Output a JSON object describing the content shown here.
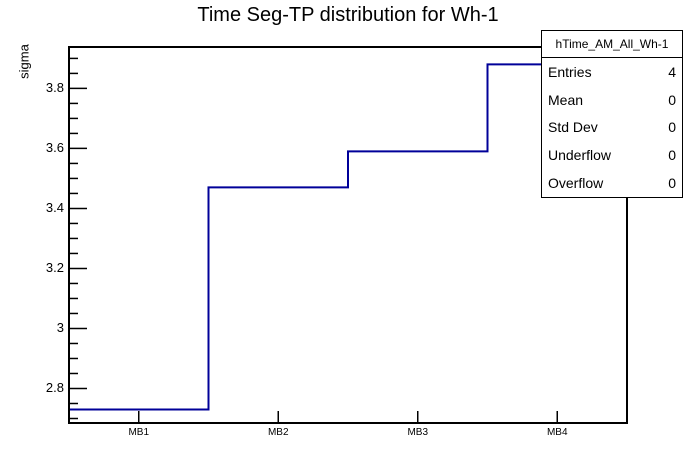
{
  "title": "Time Seg-TP distribution for Wh-1",
  "stats_box": {
    "title": "hTime_AM_All_Wh-1",
    "rows": [
      {
        "label": "Entries",
        "value": "4"
      },
      {
        "label": "Mean",
        "value": "0"
      },
      {
        "label": "Std Dev",
        "value": "0"
      },
      {
        "label": "Underflow",
        "value": "0"
      },
      {
        "label": "Overflow",
        "value": "0"
      }
    ]
  },
  "colors": {
    "histogram_line": "#000099",
    "axis": "#000000",
    "background": "#ffffff"
  },
  "chart_data": {
    "type": "bar",
    "style": "step-histogram-outline",
    "title": "Time Seg-TP distribution for Wh-1",
    "xlabel": "",
    "ylabel": "sigma",
    "categories": [
      "MB1",
      "MB2",
      "MB3",
      "MB4"
    ],
    "values": [
      2.73,
      3.47,
      3.59,
      3.88
    ],
    "ylim": [
      2.685,
      3.938
    ],
    "y_major_ticks": [
      2.8,
      3.0,
      3.2,
      3.4,
      3.6,
      3.8
    ],
    "y_tick_labels": [
      "2.8",
      "3",
      "3.2",
      "3.4",
      "3.6",
      "3.8"
    ],
    "y_minor_step": 0.05,
    "grid": false,
    "legend_position": "stats-box-top-right"
  }
}
